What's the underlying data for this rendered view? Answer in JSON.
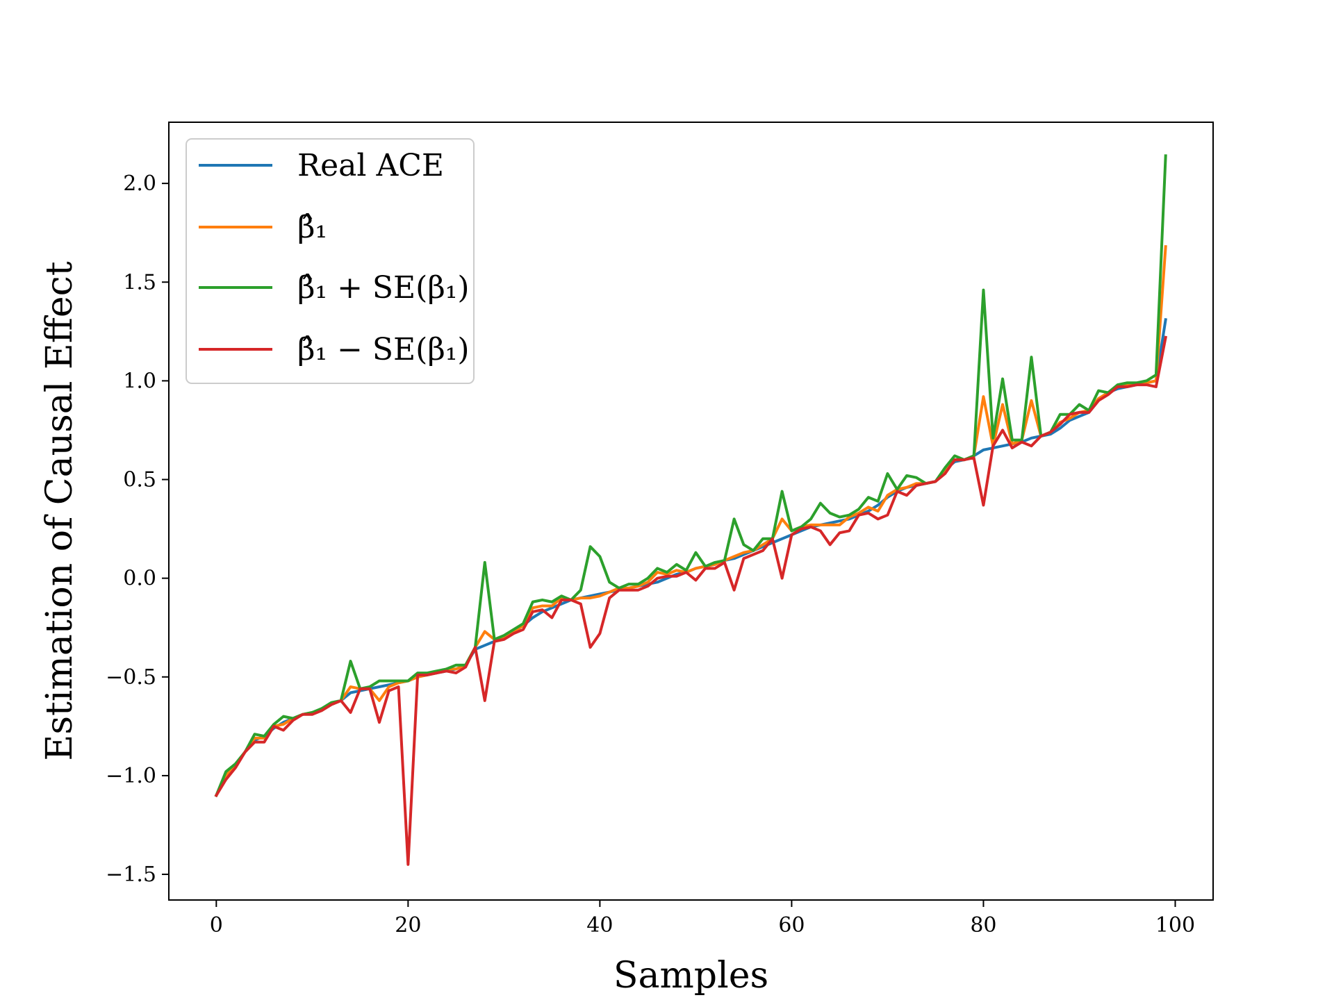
{
  "chart_data": {
    "type": "line",
    "title": "",
    "xlabel": "Samples",
    "ylabel": "Estimation of Causal Effect",
    "xlim": [
      -4.95,
      103.95
    ],
    "ylim": [
      -1.63,
      2.31
    ],
    "xticks": [
      0,
      20,
      40,
      60,
      80,
      100
    ],
    "xtick_labels": [
      "0",
      "20",
      "40",
      "60",
      "80",
      "100"
    ],
    "yticks": [
      -1.5,
      -1.0,
      -0.5,
      0.0,
      0.5,
      1.0,
      1.5,
      2.0
    ],
    "ytick_labels": [
      "−1.5",
      "−1.0",
      "−0.5",
      "0.0",
      "0.5",
      "1.0",
      "1.5",
      "2.0"
    ],
    "grid": false,
    "legend_position": "top-left",
    "legend": [
      "Real ACE",
      "β̂₁",
      "β̂₁ + SE(β₁)",
      "β̂₁ − SE(β₁)"
    ],
    "series": [
      {
        "name": "Real ACE",
        "color": "#1f77b4",
        "values": [
          -1.1,
          -1.0,
          -0.95,
          -0.88,
          -0.82,
          -0.8,
          -0.76,
          -0.73,
          -0.71,
          -0.69,
          -0.68,
          -0.67,
          -0.64,
          -0.62,
          -0.58,
          -0.57,
          -0.56,
          -0.55,
          -0.54,
          -0.53,
          -0.52,
          -0.5,
          -0.49,
          -0.48,
          -0.47,
          -0.46,
          -0.44,
          -0.36,
          -0.34,
          -0.32,
          -0.3,
          -0.27,
          -0.24,
          -0.2,
          -0.17,
          -0.15,
          -0.13,
          -0.11,
          -0.1,
          -0.09,
          -0.08,
          -0.07,
          -0.06,
          -0.05,
          -0.04,
          -0.03,
          -0.02,
          0.0,
          0.02,
          0.03,
          0.05,
          0.06,
          0.07,
          0.09,
          0.1,
          0.12,
          0.14,
          0.16,
          0.18,
          0.2,
          0.22,
          0.24,
          0.26,
          0.27,
          0.28,
          0.29,
          0.3,
          0.32,
          0.34,
          0.37,
          0.41,
          0.44,
          0.46,
          0.47,
          0.48,
          0.49,
          0.55,
          0.59,
          0.6,
          0.62,
          0.65,
          0.66,
          0.67,
          0.68,
          0.69,
          0.71,
          0.72,
          0.73,
          0.76,
          0.8,
          0.82,
          0.84,
          0.9,
          0.94,
          0.96,
          0.97,
          0.98,
          0.99,
          1.0,
          1.31
        ]
      },
      {
        "name": "β̂₁",
        "color": "#ff7f0e",
        "values": [
          -1.1,
          -1.0,
          -0.95,
          -0.88,
          -0.81,
          -0.81,
          -0.75,
          -0.74,
          -0.71,
          -0.69,
          -0.68,
          -0.67,
          -0.64,
          -0.62,
          -0.55,
          -0.56,
          -0.56,
          -0.62,
          -0.55,
          -0.53,
          -0.52,
          -0.5,
          -0.49,
          -0.48,
          -0.46,
          -0.46,
          -0.44,
          -0.35,
          -0.27,
          -0.31,
          -0.3,
          -0.27,
          -0.24,
          -0.15,
          -0.14,
          -0.14,
          -0.1,
          -0.11,
          -0.1,
          -0.1,
          -0.09,
          -0.07,
          -0.05,
          -0.05,
          -0.04,
          -0.02,
          0.03,
          0.02,
          0.04,
          0.03,
          0.05,
          0.06,
          0.07,
          0.09,
          0.11,
          0.13,
          0.14,
          0.17,
          0.2,
          0.3,
          0.24,
          0.26,
          0.27,
          0.27,
          0.27,
          0.27,
          0.31,
          0.33,
          0.36,
          0.34,
          0.42,
          0.45,
          0.46,
          0.48,
          0.48,
          0.49,
          0.55,
          0.6,
          0.6,
          0.62,
          0.92,
          0.67,
          0.88,
          0.68,
          0.7,
          0.9,
          0.72,
          0.74,
          0.79,
          0.81,
          0.84,
          0.85,
          0.91,
          0.94,
          0.97,
          0.98,
          0.98,
          0.99,
          1.0,
          1.68
        ]
      },
      {
        "name": "β̂₁ + SE(β₁)",
        "color": "#2ca02c",
        "values": [
          -1.1,
          -0.98,
          -0.94,
          -0.88,
          -0.79,
          -0.8,
          -0.74,
          -0.7,
          -0.71,
          -0.69,
          -0.68,
          -0.66,
          -0.63,
          -0.62,
          -0.42,
          -0.56,
          -0.55,
          -0.52,
          -0.52,
          -0.52,
          -0.52,
          -0.48,
          -0.48,
          -0.47,
          -0.46,
          -0.44,
          -0.44,
          -0.35,
          0.08,
          -0.31,
          -0.29,
          -0.26,
          -0.23,
          -0.12,
          -0.11,
          -0.12,
          -0.09,
          -0.11,
          -0.06,
          0.16,
          0.11,
          -0.02,
          -0.05,
          -0.03,
          -0.03,
          0.0,
          0.05,
          0.03,
          0.07,
          0.04,
          0.13,
          0.06,
          0.08,
          0.09,
          0.3,
          0.17,
          0.14,
          0.2,
          0.2,
          0.44,
          0.24,
          0.26,
          0.3,
          0.38,
          0.33,
          0.31,
          0.32,
          0.35,
          0.41,
          0.39,
          0.53,
          0.45,
          0.52,
          0.51,
          0.48,
          0.49,
          0.56,
          0.62,
          0.6,
          0.62,
          1.46,
          0.71,
          1.01,
          0.7,
          0.7,
          1.12,
          0.72,
          0.74,
          0.83,
          0.83,
          0.88,
          0.85,
          0.95,
          0.94,
          0.98,
          0.99,
          0.99,
          1.0,
          1.03,
          2.14
        ]
      },
      {
        "name": "β̂₁ − SE(β₁)",
        "color": "#d62728",
        "values": [
          -1.1,
          -1.02,
          -0.96,
          -0.88,
          -0.83,
          -0.83,
          -0.75,
          -0.77,
          -0.72,
          -0.69,
          -0.69,
          -0.67,
          -0.64,
          -0.62,
          -0.68,
          -0.56,
          -0.56,
          -0.73,
          -0.57,
          -0.55,
          -1.45,
          -0.49,
          -0.49,
          -0.48,
          -0.47,
          -0.48,
          -0.45,
          -0.35,
          -0.62,
          -0.32,
          -0.31,
          -0.28,
          -0.26,
          -0.17,
          -0.16,
          -0.2,
          -0.11,
          -0.11,
          -0.13,
          -0.35,
          -0.28,
          -0.1,
          -0.06,
          -0.06,
          -0.06,
          -0.04,
          0.0,
          0.01,
          0.01,
          0.03,
          -0.01,
          0.05,
          0.05,
          0.08,
          -0.06,
          0.1,
          0.12,
          0.14,
          0.2,
          0.0,
          0.22,
          0.25,
          0.26,
          0.24,
          0.17,
          0.23,
          0.24,
          0.32,
          0.33,
          0.3,
          0.32,
          0.44,
          0.42,
          0.47,
          0.48,
          0.49,
          0.53,
          0.6,
          0.6,
          0.61,
          0.37,
          0.67,
          0.75,
          0.66,
          0.69,
          0.67,
          0.72,
          0.74,
          0.78,
          0.83,
          0.84,
          0.84,
          0.9,
          0.93,
          0.97,
          0.97,
          0.98,
          0.98,
          0.97,
          1.22
        ]
      }
    ]
  }
}
